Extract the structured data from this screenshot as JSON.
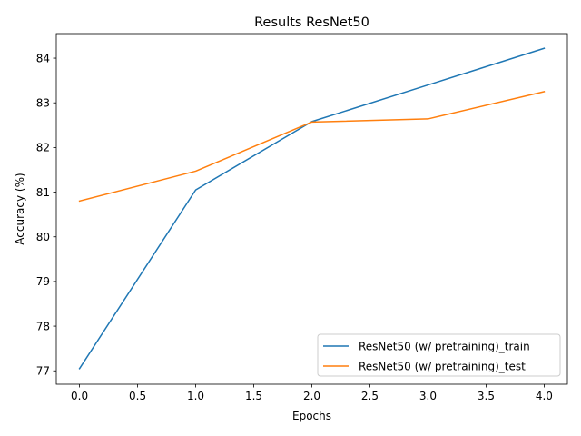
{
  "chart_data": {
    "type": "line",
    "title": "Results ResNet50",
    "xlabel": "Epochs",
    "ylabel": "Accuracy (%)",
    "x": [
      0,
      1,
      2,
      3,
      4
    ],
    "xlim": [
      -0.2,
      4.2
    ],
    "ylim": [
      76.7,
      84.55
    ],
    "xticks": [
      0.0,
      0.5,
      1.0,
      1.5,
      2.0,
      2.5,
      3.0,
      3.5,
      4.0
    ],
    "xtick_labels": [
      "0.0",
      "0.5",
      "1.0",
      "1.5",
      "2.0",
      "2.5",
      "3.0",
      "3.5",
      "4.0"
    ],
    "yticks": [
      77,
      78,
      79,
      80,
      81,
      82,
      83,
      84
    ],
    "ytick_labels": [
      "77",
      "78",
      "79",
      "80",
      "81",
      "82",
      "83",
      "84"
    ],
    "grid": false,
    "legend_position": "lower-right",
    "series": [
      {
        "name": "ResNet50 (w/ pretraining)_train",
        "color": "#1f77b4",
        "values": [
          77.05,
          81.05,
          82.58,
          83.4,
          84.22
        ]
      },
      {
        "name": "ResNet50 (w/ pretraining)_test",
        "color": "#ff7f0e",
        "values": [
          80.8,
          81.47,
          82.57,
          82.64,
          83.25
        ]
      }
    ]
  }
}
